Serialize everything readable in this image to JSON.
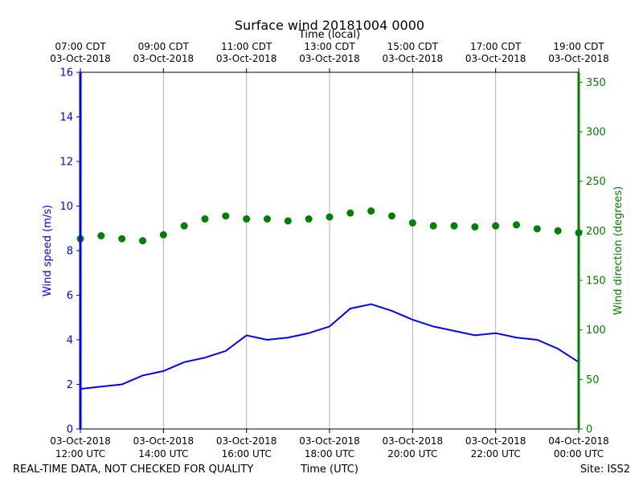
{
  "chart_data": {
    "type": "line",
    "title": "Surface wind 20181004 0000",
    "top_axis_label": "Time (local)",
    "xlabel": "Time (UTC)",
    "footer_left": "REAL-TIME DATA, NOT CHECKED FOR QUALITY",
    "footer_right": "Site: ISS2",
    "x_unit": "hours since 03-Oct-2018 12:00 UTC",
    "xlim": [
      0,
      12
    ],
    "bottom_ticks": [
      {
        "x": 0,
        "line1": "03-Oct-2018",
        "line2": "12:00 UTC"
      },
      {
        "x": 2,
        "line1": "03-Oct-2018",
        "line2": "14:00 UTC"
      },
      {
        "x": 4,
        "line1": "03-Oct-2018",
        "line2": "16:00 UTC"
      },
      {
        "x": 6,
        "line1": "03-Oct-2018",
        "line2": "18:00 UTC"
      },
      {
        "x": 8,
        "line1": "03-Oct-2018",
        "line2": "20:00 UTC"
      },
      {
        "x": 10,
        "line1": "03-Oct-2018",
        "line2": "22:00 UTC"
      },
      {
        "x": 12,
        "line1": "04-Oct-2018",
        "line2": "00:00 UTC"
      }
    ],
    "top_ticks": [
      {
        "x": 0,
        "line1": "07:00 CDT",
        "line2": "03-Oct-2018"
      },
      {
        "x": 2,
        "line1": "09:00 CDT",
        "line2": "03-Oct-2018"
      },
      {
        "x": 4,
        "line1": "11:00 CDT",
        "line2": "03-Oct-2018"
      },
      {
        "x": 6,
        "line1": "13:00 CDT",
        "line2": "03-Oct-2018"
      },
      {
        "x": 8,
        "line1": "15:00 CDT",
        "line2": "03-Oct-2018"
      },
      {
        "x": 10,
        "line1": "17:00 CDT",
        "line2": "03-Oct-2018"
      },
      {
        "x": 12,
        "line1": "19:00 CDT",
        "line2": "03-Oct-2018"
      }
    ],
    "left_axis": {
      "label": "Wind speed (m/s)",
      "ylim": [
        0,
        16
      ],
      "ticks": [
        0,
        2,
        4,
        6,
        8,
        10,
        12,
        14,
        16
      ]
    },
    "right_axis": {
      "label": "Wind direction (degrees)",
      "ylim": [
        0,
        360
      ],
      "ticks": [
        0,
        50,
        100,
        150,
        200,
        250,
        300,
        350
      ]
    },
    "series": [
      {
        "name": "Wind speed",
        "axis": "left",
        "style": "line",
        "color": "#0000ff",
        "x": [
          0.0,
          0.5,
          1.0,
          1.5,
          2.0,
          2.5,
          3.0,
          3.5,
          4.0,
          4.5,
          5.0,
          5.5,
          6.0,
          6.5,
          7.0,
          7.5,
          8.0,
          8.5,
          9.0,
          9.5,
          10.0,
          10.5,
          11.0,
          11.5,
          12.0
        ],
        "values": [
          1.8,
          1.9,
          2.0,
          2.4,
          2.6,
          3.0,
          3.2,
          3.5,
          4.2,
          4.0,
          4.1,
          4.3,
          4.6,
          5.4,
          5.6,
          5.3,
          4.9,
          4.6,
          4.4,
          4.2,
          4.3,
          4.1,
          4.0,
          3.6,
          3.0
        ]
      },
      {
        "name": "Wind direction",
        "axis": "right",
        "style": "scatter",
        "color": "#008000",
        "x": [
          0.0,
          0.5,
          1.0,
          1.5,
          2.0,
          2.5,
          3.0,
          3.5,
          4.0,
          4.5,
          5.0,
          5.5,
          6.0,
          6.5,
          7.0,
          7.5,
          8.0,
          8.5,
          9.0,
          9.5,
          10.0,
          10.5,
          11.0,
          11.5,
          12.0
        ],
        "values": [
          192,
          195,
          192,
          190,
          196,
          205,
          212,
          215,
          212,
          212,
          210,
          212,
          214,
          218,
          220,
          215,
          208,
          205,
          205,
          204,
          205,
          206,
          202,
          200,
          198
        ]
      }
    ]
  },
  "colors": {
    "speed": "#0000ff",
    "direction": "#008000",
    "grid": "#b0b0b0",
    "text": "#000000"
  }
}
